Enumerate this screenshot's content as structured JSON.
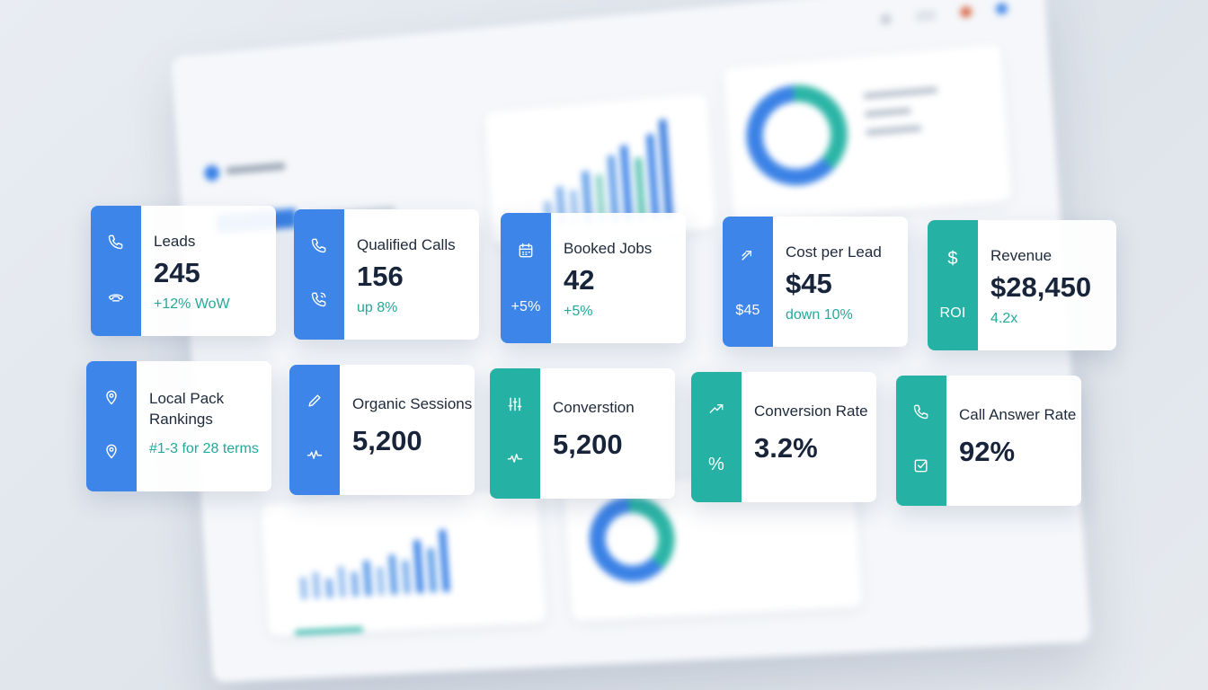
{
  "cards_row1": [
    {
      "label": "Leads",
      "value": "245",
      "delta": "+12% WoW",
      "rail_icons": [
        "phone-icon",
        "phone-handset-icon"
      ]
    },
    {
      "label": "Qualified Calls",
      "value": "156",
      "delta": "up 8%",
      "rail_icons": [
        "phone-icon",
        "phone-ringing-icon"
      ]
    },
    {
      "label": "Booked Jobs",
      "value": "42",
      "delta": "+5%",
      "rail_icons": [
        "calendar-icon"
      ],
      "rail_text": "+5%"
    },
    {
      "label": "Cost per Lead",
      "value": "$45",
      "delta": "down 10%",
      "rail_icons": [
        "trend-arrow-icon"
      ],
      "rail_text": "$45"
    },
    {
      "label": "Revenue",
      "value": "$28,450",
      "delta": "4.2x",
      "rail_icons": [
        "dollar-icon"
      ],
      "rail_text": "ROI",
      "rail_symbol": "$"
    }
  ],
  "cards_row2": [
    {
      "label_line1": "Local Pack",
      "label_line2": "Rankings",
      "delta": "#1-3 for 28 terms",
      "rail_icons": [
        "map-pin-icon",
        "map-pin-icon"
      ]
    },
    {
      "label": "Organic Sessions",
      "value": "5,200",
      "rail_icons": [
        "pencil-icon",
        "pulse-icon"
      ]
    },
    {
      "label": "Converstion",
      "value": "5,200",
      "rail_icons": [
        "sliders-icon",
        "pulse-icon"
      ]
    },
    {
      "label": "Conversion Rate",
      "value": "3.2%",
      "rail_icons": [
        "trend-up-icon"
      ],
      "rail_text": "%"
    },
    {
      "label": "Call Answer Rate",
      "value": "92%",
      "rail_icons": [
        "phone-icon",
        "check-square-icon"
      ]
    }
  ],
  "colors": {
    "blue_accent": "#3d85e8",
    "teal_accent": "#25b2a4",
    "delta_text": "#22a99a",
    "value_text": "#17243a",
    "background": "#e4e8ee"
  }
}
